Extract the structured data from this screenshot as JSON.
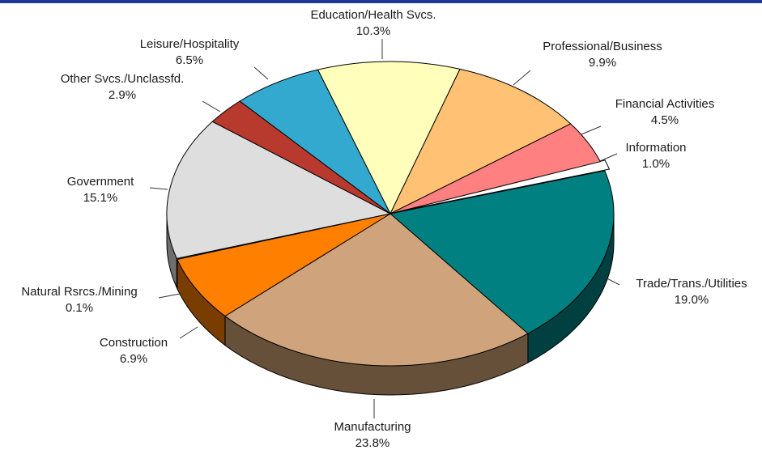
{
  "chart_data": {
    "type": "pie",
    "title": "",
    "slices": [
      {
        "name": "Information",
        "value": 1.0,
        "label": "1.0%",
        "color": "#ffffff",
        "side": "#bbbbbb"
      },
      {
        "name": "Trade/Trans./Utilities",
        "value": 19.0,
        "label": "19.0%",
        "color": "#008080",
        "side": "#004040"
      },
      {
        "name": "Manufacturing",
        "value": 23.8,
        "label": "23.8%",
        "color": "#cfa47c",
        "side": "#66503a"
      },
      {
        "name": "Construction",
        "value": 6.9,
        "label": "6.9%",
        "color": "#ff8000",
        "side": "#7a3d00"
      },
      {
        "name": "Natural Rsrcs./Mining",
        "value": 0.1,
        "label": "0.1%",
        "color": "#99cc00",
        "side": "#4a6300"
      },
      {
        "name": "Government",
        "value": 15.1,
        "label": "15.1%",
        "color": "#dedede",
        "side": "#6e6e6e"
      },
      {
        "name": "Other Svcs./Unclassfd.",
        "value": 2.9,
        "label": "2.9%",
        "color": "#b8392e",
        "side": "#5a1c16"
      },
      {
        "name": "Leisure/Hospitality",
        "value": 6.5,
        "label": "6.5%",
        "color": "#33a9cf",
        "side": "#195466"
      },
      {
        "name": "Education/Health Svcs.",
        "value": 10.3,
        "label": "10.3%",
        "color": "#ffffbb",
        "side": "#7f7f5c"
      },
      {
        "name": "Professional/Business",
        "value": 9.9,
        "label": "9.9%",
        "color": "#ffc174",
        "side": "#7f603a"
      },
      {
        "name": "Financial Activities",
        "value": 4.5,
        "label": "4.5%",
        "color": "#ff8080",
        "side": "#7f4040"
      }
    ],
    "legend": "none",
    "style": "3d-exploded-labels-outside"
  }
}
